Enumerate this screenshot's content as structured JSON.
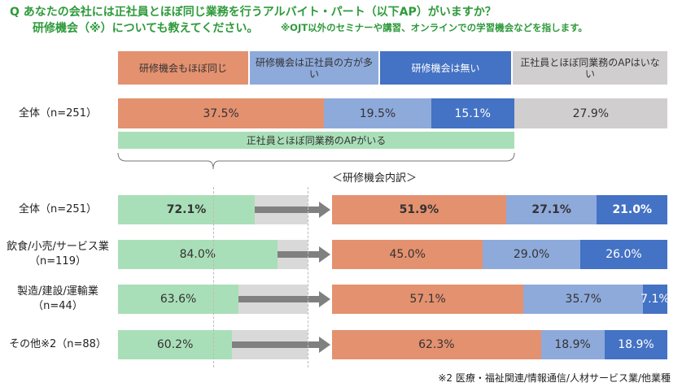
{
  "chart_data": [
    {
      "type": "stacked-bar",
      "title": "Q あなたの会社には正社員とほぼ同じ業務を行うアルバイト・パート（以下AP）がいますか？",
      "subtitle": "研修機会（※）についても教えてください。",
      "note": "※OJT以外のセミナーや講習、オンラインでの学習機会などを指します。",
      "categories": [
        [
          "全体（n=251）"
        ]
      ],
      "series": [
        {
          "name": "研修機会もほぼ同じ",
          "color": "#e4916f",
          "values": [
            37.5
          ],
          "value_labels": [
            "37.5%"
          ]
        },
        {
          "name": "研修機会は正社員の方が多い",
          "color": "#8eaadb",
          "values": [
            19.5
          ],
          "value_labels": [
            "19.5%"
          ]
        },
        {
          "name": "研修機会は無い",
          "color": "#4472c4",
          "values": [
            15.1
          ],
          "value_labels": [
            "15.1%"
          ]
        },
        {
          "name": "正社員とほぼ同業務のAPはいない",
          "color": "#d0cece",
          "values": [
            27.9
          ],
          "value_labels": [
            "27.9%"
          ]
        }
      ],
      "xlim": [
        0,
        100
      ],
      "annotation": "正社員とほぼ同業務のAPがいる"
    },
    {
      "type": "bar",
      "categories": [
        [
          "全体（n=251）"
        ],
        [
          "飲食/小売/サービス業",
          "（n=119）"
        ],
        [
          "製造/建設/運輸業",
          "（n=44）"
        ],
        [
          "その他※2（n=88）"
        ]
      ],
      "values": [
        72.1,
        84.0,
        63.6,
        60.2
      ],
      "value_labels": [
        "72.1%",
        "84.0%",
        "63.6%",
        "60.2%"
      ],
      "color": "#a9dfb8",
      "xlim": [
        0,
        100
      ]
    },
    {
      "type": "stacked-bar",
      "title": "＜研修機会内訳＞",
      "series": [
        {
          "color": "#e4916f",
          "values": [
            51.9,
            45.0,
            57.1,
            62.3
          ],
          "value_labels": [
            "51.9%",
            "45.0%",
            "57.1%",
            "62.3%"
          ]
        },
        {
          "color": "#8eaadb",
          "values": [
            27.1,
            29.0,
            35.7,
            18.9
          ],
          "value_labels": [
            "27.1%",
            "29.0%",
            "35.7%",
            "18.9%"
          ]
        },
        {
          "color": "#4472c4",
          "values": [
            21.0,
            26.0,
            7.1,
            18.9
          ],
          "value_labels": [
            "21.0%",
            "26.0%",
            "7.1%",
            "18.9%"
          ]
        }
      ],
      "xlim": [
        0,
        100
      ],
      "footnote": "※2 医療・福祉関連/情報通信/人材サービス業/他業種"
    }
  ]
}
